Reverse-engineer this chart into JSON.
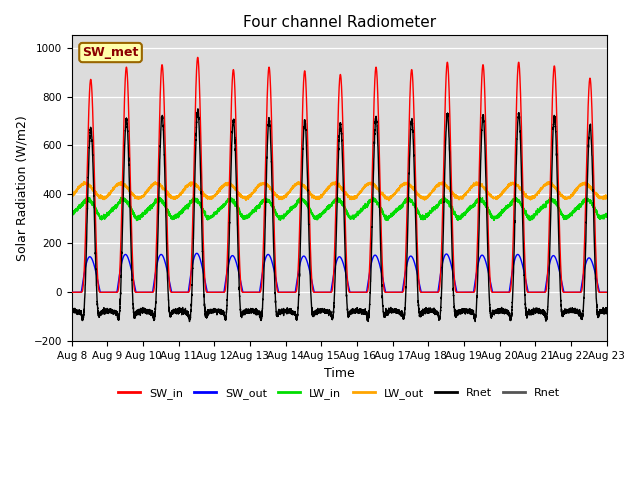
{
  "title": "Four channel Radiometer",
  "xlabel": "Time",
  "ylabel": "Solar Radiation (W/m2)",
  "annotation": "SW_met",
  "ylim": [
    -200,
    1050
  ],
  "num_days": 15,
  "date_start": 8,
  "background_color": "#dcdcdc",
  "series": {
    "SW_in": {
      "color": "#ff0000",
      "lw": 1.0
    },
    "SW_out": {
      "color": "#0000ff",
      "lw": 1.0
    },
    "LW_in": {
      "color": "#00dd00",
      "lw": 1.0
    },
    "LW_out": {
      "color": "#ffa500",
      "lw": 1.0
    },
    "Rnet1": {
      "color": "#000000",
      "lw": 1.0
    },
    "Rnet2": {
      "color": "#555555",
      "lw": 1.0
    }
  },
  "legend_entries": [
    "SW_in",
    "SW_out",
    "LW_in",
    "LW_out",
    "Rnet",
    "Rnet"
  ],
  "legend_colors": [
    "#ff0000",
    "#0000ff",
    "#00dd00",
    "#ffa500",
    "#000000",
    "#555555"
  ],
  "sw_in_peaks": [
    870,
    920,
    930,
    960,
    910,
    920,
    905,
    890,
    920,
    910,
    940,
    930,
    940,
    925,
    875
  ],
  "sw_out_peaks": [
    155,
    165,
    165,
    170,
    160,
    165,
    158,
    155,
    162,
    158,
    167,
    162,
    165,
    160,
    150
  ],
  "lw_out_base": 415,
  "lw_out_amp": 30,
  "lw_in_base": 330,
  "lw_in_amp": 25,
  "sunrise": 0.27,
  "sunset": 0.8,
  "pts_per_day": 480,
  "rnet_night": -100
}
